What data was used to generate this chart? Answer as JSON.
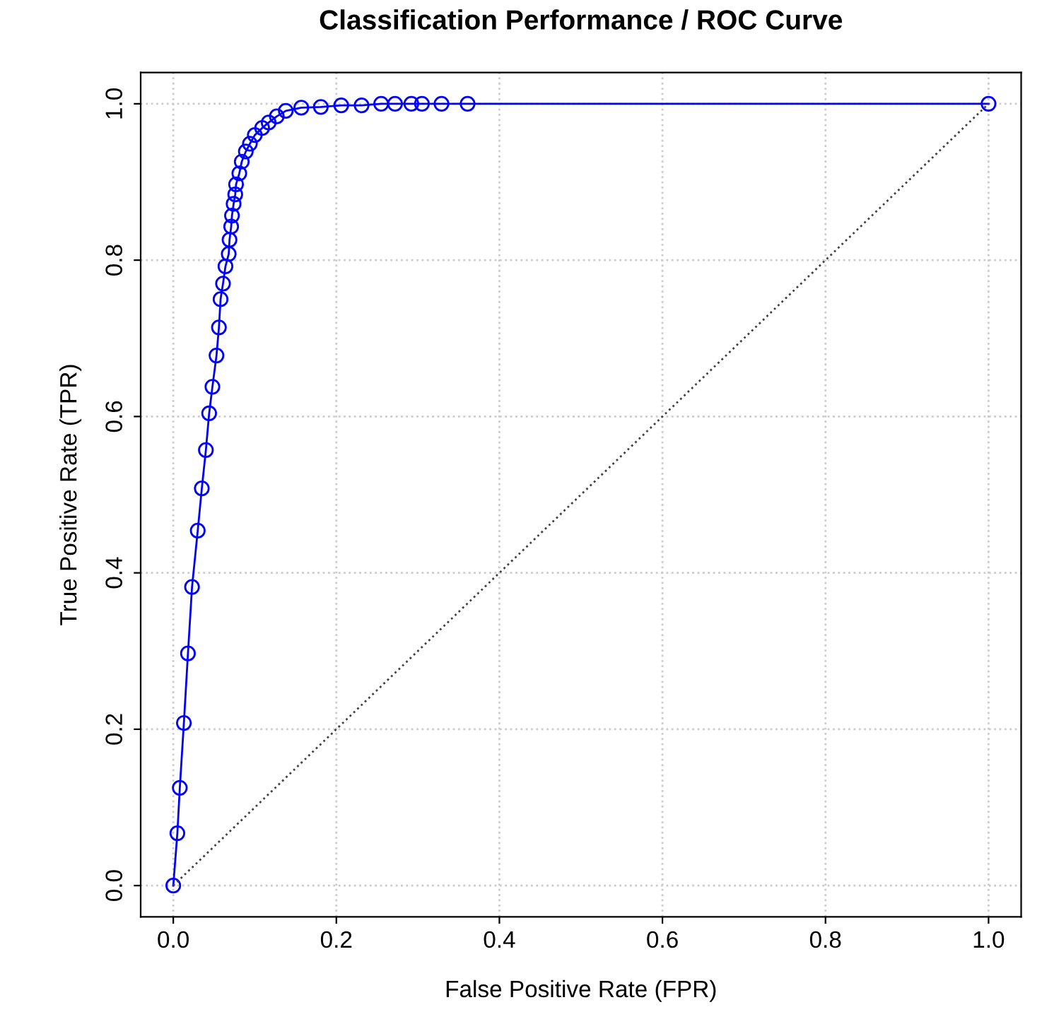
{
  "chart_data": {
    "type": "line",
    "title": "Classification Performance / ROC Curve",
    "xlabel": "False Positive Rate (FPR)",
    "ylabel": "True Positive Rate (TPR)",
    "xlim": [
      -0.04,
      1.04
    ],
    "ylim": [
      -0.04,
      1.04
    ],
    "xticks": [
      {
        "value": 0,
        "label": "0.0"
      },
      {
        "value": 0.2,
        "label": "0.2"
      },
      {
        "value": 0.4,
        "label": "0.4"
      },
      {
        "value": 0.6,
        "label": "0.6"
      },
      {
        "value": 0.8,
        "label": "0.8"
      },
      {
        "value": 1,
        "label": "1.0"
      }
    ],
    "yticks": [
      {
        "value": 0,
        "label": "0.0"
      },
      {
        "value": 0.2,
        "label": "0.2"
      },
      {
        "value": 0.4,
        "label": "0.4"
      },
      {
        "value": 0.6,
        "label": "0.6"
      },
      {
        "value": 0.8,
        "label": "0.8"
      },
      {
        "value": 1,
        "label": "1.0"
      }
    ],
    "grid": true,
    "legend": false,
    "series": [
      {
        "color": "#0000ff",
        "marker": "circle",
        "line_style": "solid",
        "x": [
          0,
          0.005,
          0.008,
          0.013,
          0.018,
          0.023,
          0.03,
          0.035,
          0.04,
          0.044,
          0.048,
          0.053,
          0.056,
          0.058,
          0.061,
          0.064,
          0.068,
          0.069,
          0.071,
          0.072,
          0.074,
          0.076,
          0.077,
          0.081,
          0.084,
          0.089,
          0.094,
          0.1,
          0.109,
          0.117,
          0.127,
          0.138,
          0.157,
          0.181,
          0.206,
          0.231,
          0.255,
          0.272,
          0.292,
          0.305,
          0.329,
          0.361,
          1
        ],
        "values": [
          0,
          0.067,
          0.125,
          0.208,
          0.297,
          0.382,
          0.454,
          0.508,
          0.557,
          0.604,
          0.638,
          0.678,
          0.714,
          0.75,
          0.77,
          0.792,
          0.808,
          0.826,
          0.843,
          0.857,
          0.872,
          0.884,
          0.897,
          0.911,
          0.926,
          0.939,
          0.949,
          0.96,
          0.969,
          0.976,
          0.984,
          0.991,
          0.995,
          0.996,
          0.998,
          0.998,
          1,
          1,
          1,
          1,
          1,
          1,
          1
        ]
      },
      {
        "color": "#404040",
        "marker": "none",
        "line_style": "dotted",
        "x": [
          0,
          1
        ],
        "values": [
          0,
          1
        ]
      }
    ]
  }
}
